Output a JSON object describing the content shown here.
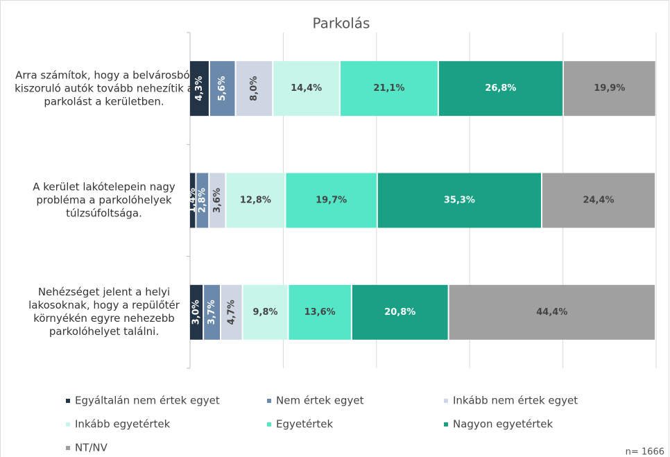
{
  "chart_data": {
    "type": "stacked-bar-horizontal",
    "title": "Parkolás",
    "categories": [
      "Arra számítok, hogy a belvárosból kiszoruló autók tovább nehezítik a parkolást a kerületben.",
      "A kerület lakótelepein nagy probléma a parkolóhelyek túlzsúfoltsága.",
      "Nehézséget jelent a helyi lakosoknak, hogy a repülőtér környékén egyre nehezebb parkolóhelyet találni."
    ],
    "series": [
      {
        "name": "Egyáltalán nem értek egyet",
        "color": "#243447",
        "values": [
          4.3,
          1.4,
          3.0
        ],
        "value_labels": [
          "4,3%",
          "1,4%",
          "3,0%"
        ]
      },
      {
        "name": "Nem értek egyet",
        "color": "#6a89ab",
        "values": [
          5.6,
          2.8,
          3.7
        ],
        "value_labels": [
          "5,6%",
          "2,8%",
          "3,7%"
        ]
      },
      {
        "name": "Inkább nem értek egyet",
        "color": "#cdd6e2",
        "values": [
          8.0,
          3.6,
          4.7
        ],
        "value_labels": [
          "8,0%",
          "3,6%",
          "4,7%"
        ]
      },
      {
        "name": "Inkább egyetértek",
        "color": "#c8f5ea",
        "values": [
          14.4,
          12.8,
          9.8
        ],
        "value_labels": [
          "14,4%",
          "12,8%",
          "9,8%"
        ]
      },
      {
        "name": "Egyetértek",
        "color": "#55e6c8",
        "values": [
          21.1,
          19.7,
          13.6
        ],
        "value_labels": [
          "21,1%",
          "19,7%",
          "13,6%"
        ]
      },
      {
        "name": "Nagyon egyetértek",
        "color": "#1aa085",
        "values": [
          26.8,
          35.3,
          20.8
        ],
        "value_labels": [
          "26,8%",
          "35,3%",
          "20,8%"
        ]
      },
      {
        "name": "NT/NV",
        "color": "#a0a0a0",
        "values": [
          19.9,
          24.4,
          44.4
        ],
        "value_labels": [
          "19,9%",
          "24,4%",
          "44,4%"
        ]
      }
    ],
    "xlim": [
      0,
      100
    ],
    "xticks": [
      0,
      20,
      40,
      60,
      80,
      100
    ],
    "grid": true,
    "legend": "bottom",
    "annotation": "n= 1666"
  }
}
